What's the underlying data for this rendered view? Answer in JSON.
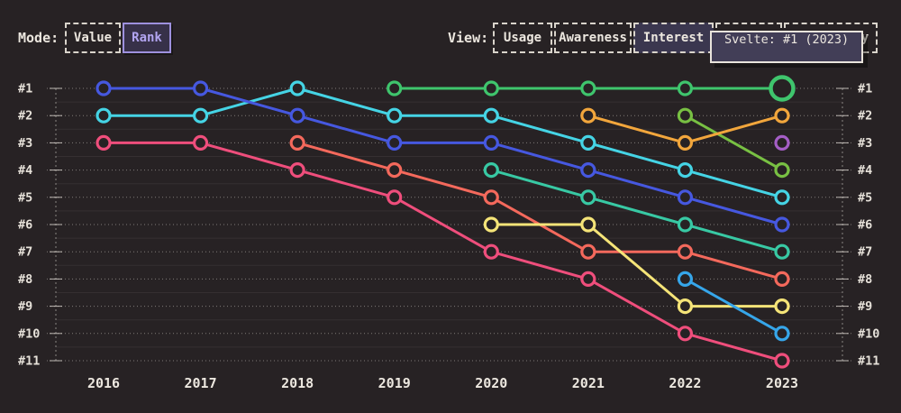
{
  "header": {
    "mode": {
      "label": "Mode:",
      "options": [
        {
          "label": "Value",
          "selected": false
        },
        {
          "label": "Rank",
          "selected": true
        }
      ]
    },
    "view": {
      "label": "View:",
      "options": [
        {
          "label": "Usage",
          "selected": false
        },
        {
          "label": "Awareness",
          "selected": false
        },
        {
          "label": "Interest",
          "selected": true
        },
        {
          "label": "Retention",
          "selected": false
        },
        {
          "label": "Positivity",
          "selected": false
        }
      ]
    },
    "tooltip": {
      "text": "Svelte: #1 (2023)"
    }
  },
  "colors": {
    "background": "#272224",
    "text": "#ece7df",
    "selected_accent": "#9e91de",
    "tooltip_bg": "#423e57"
  },
  "chart_data": {
    "type": "line",
    "subtype": "bump-rank-chart",
    "mode": "rank",
    "view": "Interest",
    "x": [
      2016,
      2017,
      2018,
      2019,
      2020,
      2021,
      2022,
      2023
    ],
    "yticks": [
      "#1",
      "#2",
      "#3",
      "#4",
      "#5",
      "#6",
      "#7",
      "#8",
      "#9",
      "#10",
      "#11"
    ],
    "ylim": [
      1,
      11
    ],
    "y_inverted": true,
    "grid": "dotted-horizontal",
    "legend": "none",
    "highlight": {
      "series": "Svelte",
      "year": 2023,
      "rank": 1,
      "tooltip": "Svelte: #1 (2023)"
    },
    "series": [
      {
        "name": "pink-line",
        "color": "#ef4e7c",
        "values": [
          3,
          3,
          4,
          5,
          7,
          8,
          10,
          11
        ]
      },
      {
        "name": "salmon-line",
        "color": "#f4695c",
        "values": [
          null,
          null,
          3,
          4,
          5,
          7,
          7,
          8
        ]
      },
      {
        "name": "yellow-line",
        "color": "#f5e478",
        "values": [
          null,
          null,
          null,
          null,
          6,
          6,
          9,
          9
        ]
      },
      {
        "name": "azure-line",
        "color": "#36a6ea",
        "values": [
          null,
          null,
          null,
          null,
          null,
          null,
          8,
          10
        ]
      },
      {
        "name": "teal-line",
        "color": "#38c9a4",
        "values": [
          null,
          null,
          null,
          null,
          4,
          5,
          6,
          7
        ]
      },
      {
        "name": "cyan-line",
        "color": "#45d4e5",
        "values": [
          2,
          2,
          1,
          2,
          2,
          3,
          4,
          5
        ]
      },
      {
        "name": "blue-line",
        "color": "#4658e0",
        "values": [
          1,
          1,
          2,
          3,
          3,
          4,
          5,
          6
        ]
      },
      {
        "name": "olive-line",
        "color": "#78c043",
        "values": [
          null,
          null,
          null,
          null,
          null,
          null,
          2,
          4
        ]
      },
      {
        "name": "orange-line",
        "color": "#f2a63c",
        "values": [
          null,
          null,
          null,
          null,
          null,
          2,
          3,
          2
        ]
      },
      {
        "name": "purple-line",
        "color": "#a55ec6",
        "values": [
          null,
          null,
          null,
          null,
          null,
          null,
          null,
          3
        ]
      },
      {
        "name": "Svelte",
        "color": "#3fc56d",
        "values": [
          null,
          null,
          null,
          1,
          1,
          1,
          1,
          1
        ],
        "highlight_year": 2023
      }
    ]
  }
}
